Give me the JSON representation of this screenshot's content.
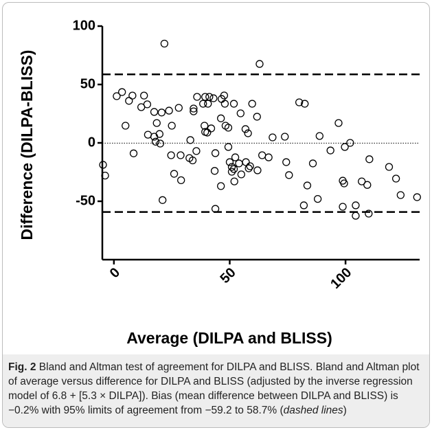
{
  "chart_data": {
    "type": "scatter",
    "x_label": "Average (DILPA and BLISS)",
    "y_label": "Difference (DILPA-BLISS)",
    "xlim": [
      -5,
      132
    ],
    "ylim": [
      -100,
      100
    ],
    "xticks": [
      0,
      50,
      100
    ],
    "yticks": [
      -50,
      0,
      50,
      100
    ],
    "marker_color": "#000000",
    "reference_lines": [
      {
        "value": 58.7,
        "style": "dashed"
      },
      {
        "value": -0.2,
        "style": "dotted"
      },
      {
        "value": -59.2,
        "style": "dashed"
      }
    ],
    "x": [
      -4.7,
      -3.8,
      1.2,
      3.5,
      5,
      6.5,
      8,
      8.5,
      11.8,
      13,
      14.4,
      14.7,
      17.4,
      17.4,
      18,
      18.5,
      19.7,
      20,
      20.6,
      21,
      21.8,
      23.8,
      25,
      24.7,
      26,
      28,
      28.8,
      29,
      33,
      32.6,
      34,
      34.4,
      34.4,
      35.6,
      35.9,
      38.5,
      39.4,
      39.4,
      39.1,
      40.3,
      40.6,
      41.2,
      42,
      43,
      43.5,
      43.8,
      43.8,
      46.2,
      46.2,
      46.5,
      47.6,
      48.2,
      47.9,
      49.4,
      49.4,
      50,
      50.9,
      50.9,
      51.8,
      51.8,
      52.4,
      52,
      54,
      54.7,
      55,
      56.8,
      57,
      57.9,
      58.2,
      58.8,
      59.7,
      61.8,
      62,
      62.9,
      64,
      66.8,
      68.5,
      73.8,
      74.4,
      75.6,
      80,
      82,
      82.4,
      83.5,
      85.9,
      88,
      88.8,
      93.5,
      97,
      98.8,
      98.8,
      99.4,
      99.7,
      102,
      104.4,
      104.4,
      107,
      109.4,
      110,
      110.3,
      118.8,
      121.8,
      123.8,
      130.9
    ],
    "values": [
      -18.8,
      -28,
      40,
      43.5,
      14.7,
      36,
      40.5,
      -9,
      30.6,
      40.5,
      33,
      7,
      5.3,
      26.5,
      1,
      17,
      7.6,
      -0.6,
      26,
      -49,
      85,
      27.6,
      14.7,
      -10.6,
      -26.5,
      30,
      -10.6,
      -32,
      2.4,
      -13,
      -15,
      27,
      29.4,
      -7,
      39.4,
      33.5,
      39.4,
      9.4,
      14.7,
      8.8,
      33.5,
      39.4,
      12.4,
      38.2,
      -24,
      -8.8,
      -56.5,
      -37,
      21,
      37.6,
      40.6,
      14.7,
      33.5,
      13,
      -3.5,
      -16.5,
      -20.6,
      -24.7,
      -22.4,
      33.5,
      -12.4,
      -33,
      -17.6,
      25.3,
      -27,
      11.8,
      -16.5,
      8.2,
      -21.8,
      -20,
      33.5,
      22.4,
      -23.5,
      67.6,
      -10.6,
      -12.4,
      4.7,
      5.3,
      -16.5,
      -27.6,
      34.7,
      -53.5,
      33.5,
      -36.5,
      -17.6,
      -48,
      5.9,
      -6.5,
      17,
      -54.7,
      -32.4,
      -34.7,
      -3.5,
      0,
      -53.5,
      -62.4,
      -33,
      -36,
      -60.6,
      -14,
      -20.6,
      -30.6,
      -44.7,
      -46.5
    ]
  },
  "caption": {
    "label": "Fig. 2",
    "text": " Bland and Altman test of agreement for DILPA and BLISS. Bland and Altman plot of average versus difference for DILPA and BLISS (adjusted by the inverse regression model of 6.8 + [5.3 × DILPA]). Bias (mean difference between DILPA and BLISS) is −0.2% with 95% limits of agreement from −59.2 to 58.7% (",
    "italic": "dashed lines",
    "end": ")"
  }
}
